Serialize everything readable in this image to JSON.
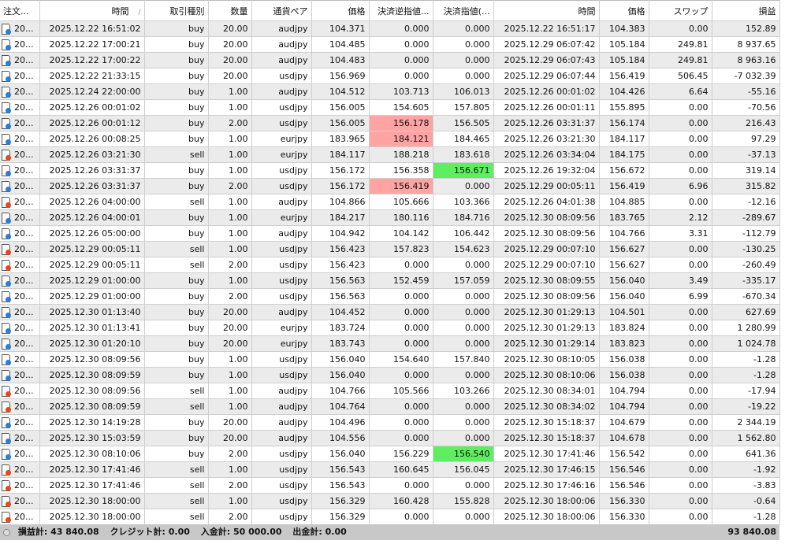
{
  "columns": [
    "注文...",
    "時間",
    "取引種別",
    "数量",
    "通貨ペア",
    "価格",
    "決済逆指値...",
    "決済指値(...",
    "時間",
    "価格",
    "スワップ",
    "損益"
  ],
  "sort_indicator": "/",
  "highlight_colors": {
    "red": "#ffa3a3",
    "green": "#5fee5f"
  },
  "rows": [
    [
      "20...",
      "2025.12.22 16:51:02",
      "buy",
      "20.00",
      "audjpy",
      "104.371",
      "0.000",
      "0.000",
      "2025.12.22 16:51:17",
      "104.383",
      "0.00",
      "152.89"
    ],
    [
      "20...",
      "2025.12.22 17:00:21",
      "buy",
      "20.00",
      "audjpy",
      "104.485",
      "0.000",
      "0.000",
      "2025.12.29 06:07:42",
      "105.184",
      "249.81",
      "8 937.65"
    ],
    [
      "20...",
      "2025.12.22 17:00:22",
      "buy",
      "20.00",
      "audjpy",
      "104.483",
      "0.000",
      "0.000",
      "2025.12.29 06:07:43",
      "105.184",
      "249.81",
      "8 963.16"
    ],
    [
      "20...",
      "2025.12.22 21:33:15",
      "buy",
      "20.00",
      "usdjpy",
      "156.969",
      "0.000",
      "0.000",
      "2025.12.29 06:07:44",
      "156.419",
      "506.45",
      "-7 032.39"
    ],
    [
      "20...",
      "2025.12.24 22:00:00",
      "buy",
      "1.00",
      "audjpy",
      "104.512",
      "103.713",
      "106.013",
      "2025.12.26 00:01:02",
      "104.426",
      "6.64",
      "-55.16"
    ],
    [
      "20...",
      "2025.12.26 00:01:02",
      "buy",
      "1.00",
      "usdjpy",
      "156.005",
      "154.605",
      "157.805",
      "2025.12.26 00:01:11",
      "155.895",
      "0.00",
      "-70.56"
    ],
    [
      "20...",
      "2025.12.26 00:01:12",
      "buy",
      "2.00",
      "usdjpy",
      "156.005",
      "156.178",
      "156.505",
      "2025.12.26 03:31:37",
      "156.174",
      "0.00",
      "216.43"
    ],
    [
      "20...",
      "2025.12.26 00:08:25",
      "buy",
      "1.00",
      "eurjpy",
      "183.965",
      "184.121",
      "184.465",
      "2025.12.26 03:21:30",
      "184.117",
      "0.00",
      "97.29"
    ],
    [
      "20...",
      "2025.12.26 03:21:30",
      "sell",
      "1.00",
      "eurjpy",
      "184.117",
      "188.218",
      "183.618",
      "2025.12.26 03:34:04",
      "184.175",
      "0.00",
      "-37.13"
    ],
    [
      "20...",
      "2025.12.26 03:31:37",
      "buy",
      "1.00",
      "usdjpy",
      "156.172",
      "156.358",
      "156.671",
      "2025.12.26 19:32:04",
      "156.672",
      "0.00",
      "319.14"
    ],
    [
      "20...",
      "2025.12.26 03:31:37",
      "buy",
      "2.00",
      "usdjpy",
      "156.172",
      "156.419",
      "0.000",
      "2025.12.29 00:05:11",
      "156.419",
      "6.96",
      "315.82"
    ],
    [
      "20...",
      "2025.12.26 04:00:00",
      "sell",
      "1.00",
      "audjpy",
      "104.866",
      "105.666",
      "103.366",
      "2025.12.26 04:01:38",
      "104.885",
      "0.00",
      "-12.16"
    ],
    [
      "20...",
      "2025.12.26 04:00:01",
      "buy",
      "1.00",
      "eurjpy",
      "184.217",
      "180.116",
      "184.716",
      "2025.12.30 08:09:56",
      "183.765",
      "2.12",
      "-289.67"
    ],
    [
      "20...",
      "2025.12.26 05:00:00",
      "buy",
      "1.00",
      "audjpy",
      "104.942",
      "104.142",
      "106.442",
      "2025.12.30 08:09:56",
      "104.766",
      "3.31",
      "-112.79"
    ],
    [
      "20...",
      "2025.12.29 00:05:11",
      "sell",
      "1.00",
      "usdjpy",
      "156.423",
      "157.823",
      "154.623",
      "2025.12.29 00:07:10",
      "156.627",
      "0.00",
      "-130.25"
    ],
    [
      "20...",
      "2025.12.29 00:05:11",
      "sell",
      "2.00",
      "usdjpy",
      "156.423",
      "0.000",
      "0.000",
      "2025.12.29 00:07:10",
      "156.627",
      "0.00",
      "-260.49"
    ],
    [
      "20...",
      "2025.12.29 01:00:00",
      "buy",
      "1.00",
      "usdjpy",
      "156.563",
      "152.459",
      "157.059",
      "2025.12.30 08:09:55",
      "156.040",
      "3.49",
      "-335.17"
    ],
    [
      "20...",
      "2025.12.29 01:00:00",
      "buy",
      "2.00",
      "usdjpy",
      "156.563",
      "0.000",
      "0.000",
      "2025.12.30 08:09:56",
      "156.040",
      "6.99",
      "-670.34"
    ],
    [
      "20...",
      "2025.12.30 01:13:40",
      "buy",
      "20.00",
      "audjpy",
      "104.452",
      "0.000",
      "0.000",
      "2025.12.30 01:29:13",
      "104.501",
      "0.00",
      "627.69"
    ],
    [
      "20...",
      "2025.12.30 01:13:41",
      "buy",
      "20.00",
      "eurjpy",
      "183.724",
      "0.000",
      "0.000",
      "2025.12.30 01:29:13",
      "183.824",
      "0.00",
      "1 280.99"
    ],
    [
      "20...",
      "2025.12.30 01:20:10",
      "buy",
      "20.00",
      "eurjpy",
      "183.743",
      "0.000",
      "0.000",
      "2025.12.30 01:29:14",
      "183.823",
      "0.00",
      "1 024.78"
    ],
    [
      "20...",
      "2025.12.30 08:09:56",
      "buy",
      "1.00",
      "usdjpy",
      "156.040",
      "154.640",
      "157.840",
      "2025.12.30 08:10:05",
      "156.038",
      "0.00",
      "-1.28"
    ],
    [
      "20...",
      "2025.12.30 08:09:59",
      "buy",
      "1.00",
      "usdjpy",
      "156.040",
      "0.000",
      "0.000",
      "2025.12.30 08:10:06",
      "156.038",
      "0.00",
      "-1.28"
    ],
    [
      "20...",
      "2025.12.30 08:09:56",
      "sell",
      "1.00",
      "audjpy",
      "104.766",
      "105.566",
      "103.266",
      "2025.12.30 08:34:01",
      "104.794",
      "0.00",
      "-17.94"
    ],
    [
      "20...",
      "2025.12.30 08:09:59",
      "sell",
      "1.00",
      "audjpy",
      "104.764",
      "0.000",
      "0.000",
      "2025.12.30 08:34:02",
      "104.794",
      "0.00",
      "-19.22"
    ],
    [
      "20...",
      "2025.12.30 14:19:28",
      "buy",
      "20.00",
      "audjpy",
      "104.496",
      "0.000",
      "0.000",
      "2025.12.30 15:18:37",
      "104.679",
      "0.00",
      "2 344.19"
    ],
    [
      "20...",
      "2025.12.30 15:03:59",
      "buy",
      "20.00",
      "audjpy",
      "104.556",
      "0.000",
      "0.000",
      "2025.12.30 15:18:37",
      "104.678",
      "0.00",
      "1 562.80"
    ],
    [
      "20...",
      "2025.12.30 08:10:06",
      "buy",
      "2.00",
      "usdjpy",
      "156.040",
      "156.229",
      "156.540",
      "2025.12.30 17:41:46",
      "156.542",
      "0.00",
      "641.36"
    ],
    [
      "20...",
      "2025.12.30 17:41:46",
      "sell",
      "1.00",
      "usdjpy",
      "156.543",
      "160.645",
      "156.045",
      "2025.12.30 17:46:15",
      "156.546",
      "0.00",
      "-1.92"
    ],
    [
      "20...",
      "2025.12.30 17:41:46",
      "sell",
      "2.00",
      "usdjpy",
      "156.543",
      "0.000",
      "0.000",
      "2025.12.30 17:46:16",
      "156.546",
      "0.00",
      "-3.83"
    ],
    [
      "20...",
      "2025.12.30 18:00:00",
      "sell",
      "1.00",
      "usdjpy",
      "156.329",
      "160.428",
      "155.828",
      "2025.12.30 18:00:06",
      "156.330",
      "0.00",
      "-0.64"
    ],
    [
      "20...",
      "2025.12.30 18:00:00",
      "sell",
      "2.00",
      "usdjpy",
      "156.329",
      "0.000",
      "0.000",
      "2025.12.30 18:00:06",
      "156.330",
      "0.00",
      "-1.28"
    ]
  ],
  "highlights": [
    {
      "row": 6,
      "col": 6,
      "color": "red"
    },
    {
      "row": 7,
      "col": 6,
      "color": "red"
    },
    {
      "row": 10,
      "col": 6,
      "color": "red"
    },
    {
      "row": 9,
      "col": 7,
      "color": "green"
    },
    {
      "row": 27,
      "col": 7,
      "color": "green"
    }
  ],
  "footer": {
    "profit": "損益計: 43 840.08",
    "credit": "クレジット計: 0.00",
    "deposit": "入金計: 50 000.00",
    "withdrawal": "出金計: 0.00",
    "total": "93 840.08"
  }
}
